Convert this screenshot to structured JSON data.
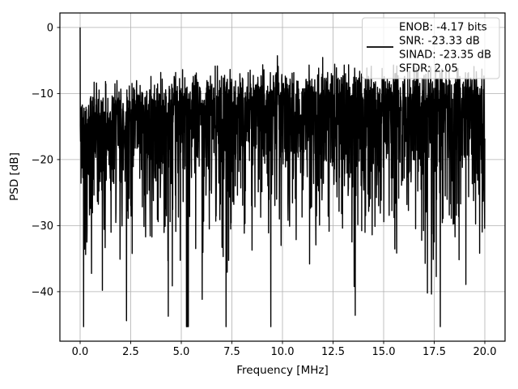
{
  "figure": {
    "background": "#ffffff"
  },
  "chart_data": {
    "type": "line",
    "title": "",
    "xlabel": "Frequency [MHz]",
    "ylabel": "PSD [dB]",
    "xlim": [
      -1.0,
      21.0
    ],
    "ylim": [
      -47.5,
      2.2
    ],
    "x_ticks": [
      0.0,
      2.5,
      5.0,
      7.5,
      10.0,
      12.5,
      15.0,
      17.5,
      20.0
    ],
    "x_tick_labels": [
      "0.0",
      "2.5",
      "5.0",
      "7.5",
      "10.0",
      "12.5",
      "15.0",
      "17.5",
      "20.0"
    ],
    "y_ticks": [
      0,
      -10,
      -20,
      -30,
      -40
    ],
    "y_tick_labels": [
      "0",
      "−10",
      "−20",
      "−30",
      "−40"
    ],
    "grid": true,
    "grid_color": "#b0b0b0",
    "axis_color": "#000000",
    "legend_position": "upper right",
    "series": [
      {
        "name": "PSD",
        "color": "#000000",
        "kind": "fft-noise-spectrum",
        "freq_start_mhz": 0.0,
        "freq_end_mhz": 20.0,
        "n_points": 2200,
        "dc_spike_db": 0.0,
        "noise_top_db_low_freq": -11.5,
        "noise_top_db_high_freq": -8.0,
        "noise_envelope_tau_mhz": 4.5,
        "noise_dense_band_bottom_db": -25.0,
        "noise_min_db": -45.3,
        "seed": 42
      }
    ],
    "metrics": {
      "enob_bits": -4.17,
      "snr_db": -23.33,
      "sinad_db": -23.35,
      "sfdr": 2.05
    }
  },
  "legend": {
    "lines": [
      "ENOB: -4.17 bits",
      "SNR: -23.33 dB",
      "SINAD: -23.35 dB",
      "SFDR: 2.05"
    ]
  }
}
